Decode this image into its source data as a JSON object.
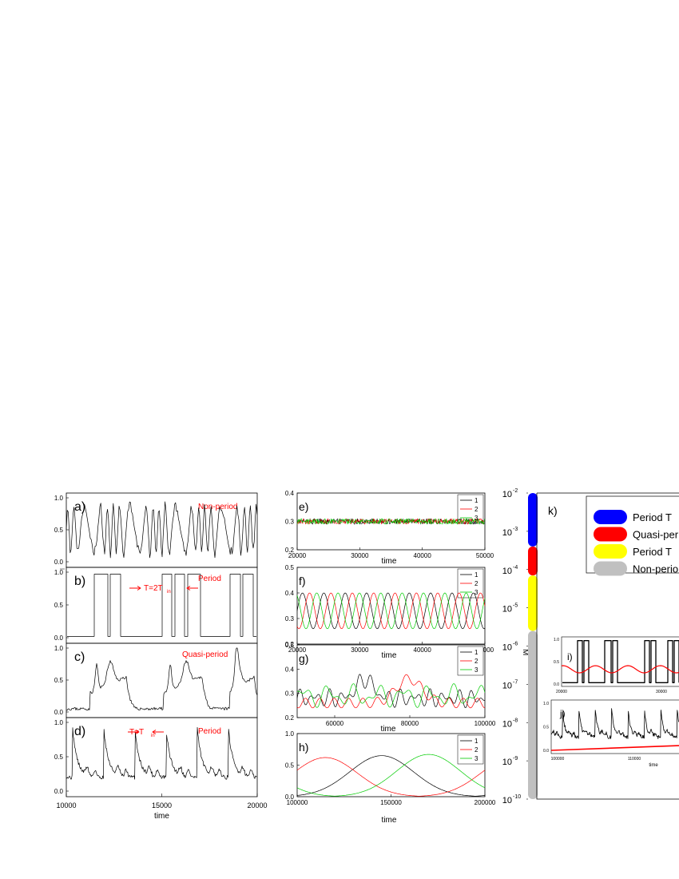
{
  "figure": {
    "left": {
      "panels": [
        {
          "label": "a)",
          "note": "Non-period",
          "note2": "",
          "ticks": [
            "0.0",
            "0.5",
            "1.0"
          ],
          "kind": "chaos"
        },
        {
          "label": "b)",
          "note": "Period",
          "note2": "T=2T",
          "sub": "in",
          "ticks": [
            "0.0",
            "0.5",
            "1.0"
          ],
          "kind": "square"
        },
        {
          "label": "c)",
          "note": "Quasi-period",
          "note2": "",
          "ticks": [
            "0.0",
            "0.5",
            "1.0"
          ],
          "kind": "quasi"
        },
        {
          "label": "d)",
          "note": "Period",
          "note2": "T=T",
          "sub": "in",
          "ticks": [
            "0.0",
            "0.5",
            "1.0"
          ],
          "kind": "period"
        }
      ],
      "xticks": [
        "10000",
        "15000",
        "20000"
      ],
      "xlabel": "time"
    },
    "middle": {
      "panels": [
        {
          "label": "e)",
          "yticks": [
            "0.2",
            "0.3",
            "0.4"
          ],
          "xticks": [
            "20000",
            "30000",
            "40000",
            "50000"
          ],
          "xlabel": "time",
          "legend": [
            "1",
            "2",
            "3"
          ]
        },
        {
          "label": "f)",
          "yticks": [
            "0.2",
            "0.3",
            "0.4",
            "0.5"
          ],
          "xticks": [
            "20000",
            "30000",
            "40000",
            "50000"
          ],
          "xlabel": "time",
          "legend": [
            "1",
            "2",
            "3"
          ]
        },
        {
          "label": "g)",
          "yticks": [
            "0.2",
            "0.3",
            "0.4",
            "0.5"
          ],
          "xticks": [
            "60000",
            "80000",
            "100000"
          ],
          "xlabel": "time",
          "legend": [
            "1",
            "2",
            "3"
          ]
        },
        {
          "label": "h)",
          "yticks": [
            "0.0",
            "0.5",
            "1.0"
          ],
          "xticks": [
            "100000",
            "150000",
            "200000"
          ],
          "xlabel": "time",
          "legend": [
            "1",
            "2",
            "3"
          ]
        }
      ]
    },
    "right": {
      "label": "k)",
      "ylabel": "M",
      "yticks": [
        {
          "base": "10",
          "exp": "-2"
        },
        {
          "base": "10",
          "exp": "-3"
        },
        {
          "base": "10",
          "exp": "-4"
        },
        {
          "base": "10",
          "exp": "-5"
        },
        {
          "base": "10",
          "exp": "-6"
        },
        {
          "base": "10",
          "exp": "-7"
        },
        {
          "base": "10",
          "exp": "-8"
        },
        {
          "base": "10",
          "exp": "-9"
        },
        {
          "base": "10",
          "exp": "-10"
        }
      ],
      "legend": [
        {
          "label": "Period   T",
          "color": "#0000ff"
        },
        {
          "label": "Quasi-per",
          "color": "#ff0000"
        },
        {
          "label": "Period   T",
          "color": "#ffff00"
        },
        {
          "label": "Non-perio",
          "color": "#c0c0c0"
        }
      ],
      "inset_i": {
        "label": "i)",
        "yticks": [
          "0.0",
          "0.5",
          "1.0"
        ],
        "xticks": [
          "20000",
          "30000"
        ]
      },
      "inset_j": {
        "label": "j)",
        "yticks": [
          "0.0",
          "0.5",
          "1.0"
        ],
        "xticks": [
          "100000",
          "110000"
        ],
        "xlabel": "time"
      }
    }
  },
  "chart_data": [
    {
      "type": "line",
      "panel": "a",
      "title": "Non-period",
      "xlabel": "time",
      "x_range": [
        10000,
        20000
      ],
      "ylim": [
        0,
        1
      ],
      "series": [
        {
          "values_description_kind": "irregular oscillation 0–1"
        }
      ]
    },
    {
      "type": "line",
      "panel": "b",
      "title": "Period",
      "annotation": "T=2T_in",
      "xlabel": "time",
      "x_range": [
        10000,
        20000
      ],
      "ylim": [
        0,
        1
      ]
    },
    {
      "type": "line",
      "panel": "c",
      "title": "Quasi-period",
      "xlabel": "time",
      "x_range": [
        10000,
        20000
      ],
      "ylim": [
        0,
        1
      ]
    },
    {
      "type": "line",
      "panel": "d",
      "title": "Period",
      "annotation": "T=T_in",
      "xlabel": "time",
      "x_range": [
        10000,
        20000
      ],
      "ylim": [
        0,
        1
      ]
    },
    {
      "type": "line",
      "panel": "e",
      "xlabel": "time",
      "x_range": [
        20000,
        50000
      ],
      "ylim": [
        0.2,
        0.4
      ],
      "series": [
        {
          "name": "1",
          "color": "#000000",
          "mean": 0.3
        },
        {
          "name": "2",
          "color": "#ff0000",
          "mean": 0.3
        },
        {
          "name": "3",
          "color": "#00cc00",
          "mean": 0.3
        }
      ]
    },
    {
      "type": "line",
      "panel": "f",
      "xlabel": "time",
      "x_range": [
        20000,
        50000
      ],
      "ylim": [
        0.2,
        0.5
      ],
      "series": [
        {
          "name": "1",
          "color": "#000000",
          "min": 0.26,
          "max": 0.4
        },
        {
          "name": "2",
          "color": "#ff0000",
          "min": 0.26,
          "max": 0.4
        },
        {
          "name": "3",
          "color": "#00cc00",
          "min": 0.26,
          "max": 0.4
        }
      ]
    },
    {
      "type": "line",
      "panel": "g",
      "xlabel": "time",
      "x_range": [
        50000,
        100000
      ],
      "ylim": [
        0.2,
        0.5
      ],
      "series": [
        {
          "name": "1",
          "color": "#000000"
        },
        {
          "name": "2",
          "color": "#ff0000"
        },
        {
          "name": "3",
          "color": "#00cc00"
        }
      ]
    },
    {
      "type": "line",
      "panel": "h",
      "xlabel": "time",
      "x_range": [
        100000,
        200000
      ],
      "ylim": [
        0,
        1
      ],
      "series": [
        {
          "name": "1",
          "color": "#000000",
          "peak": [
            145000,
            0.65
          ]
        },
        {
          "name": "2",
          "color": "#ff0000",
          "peak": [
            115000,
            0.62
          ]
        },
        {
          "name": "3",
          "color": "#00cc00",
          "peak": [
            170000,
            0.67
          ]
        }
      ]
    },
    {
      "type": "bar",
      "panel": "k",
      "ylabel": "M",
      "scale": "log",
      "ylim": [
        1e-10,
        0.01
      ],
      "segments": [
        {
          "name": "Period",
          "color": "#0000ff",
          "from": 0.0004,
          "to": 0.01
        },
        {
          "name": "Quasi-period",
          "color": "#ff0000",
          "from": 7e-05,
          "to": 0.0004
        },
        {
          "name": "Period",
          "color": "#ffff00",
          "from": 2.5e-06,
          "to": 7e-05
        },
        {
          "name": "Non-period",
          "color": "#c0c0c0",
          "from": 1e-10,
          "to": 2.5e-06
        }
      ]
    }
  ]
}
